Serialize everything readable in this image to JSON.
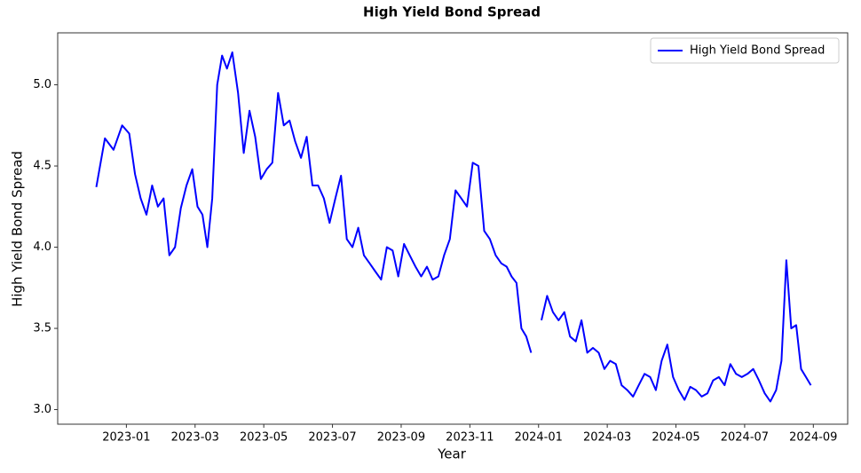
{
  "chart_data": {
    "type": "line",
    "title": "High Yield Bond Spread",
    "x_label": "Year",
    "y_label": "High Yield Bond Spread",
    "legend": "upper right",
    "xlim": [
      "2022-11",
      "2024-10"
    ],
    "ylim": [
      2.91,
      5.32
    ],
    "xticks": [
      "2023-01",
      "2023-03",
      "2023-05",
      "2023-07",
      "2023-09",
      "2023-11",
      "2024-01",
      "2024-03",
      "2024-05",
      "2024-07",
      "2024-09"
    ],
    "yticks": [
      {
        "value": 3,
        "label": "3.0"
      },
      {
        "value": 3.5,
        "label": "3.5"
      },
      {
        "value": 4,
        "label": "4.0"
      },
      {
        "value": 4.5,
        "label": "4.5"
      },
      {
        "value": 5,
        "label": "5.0"
      }
    ],
    "x": [
      "2022-12",
      "2022-12",
      "2022-12",
      "2022-12",
      "2023-01",
      "2023-01",
      "2023-01",
      "2023-01",
      "2023-01",
      "2023-01",
      "2023-02",
      "2023-02",
      "2023-02",
      "2023-02",
      "2023-02",
      "2023-02",
      "2023-03",
      "2023-03",
      "2023-03",
      "2023-03",
      "2023-03",
      "2023-03",
      "2023-03",
      "2023-04",
      "2023-04",
      "2023-04",
      "2023-04",
      "2023-04",
      "2023-04",
      "2023-05",
      "2023-05",
      "2023-05",
      "2023-05",
      "2023-05",
      "2023-05",
      "2023-06",
      "2023-06",
      "2023-06",
      "2023-06",
      "2023-06",
      "2023-06",
      "2023-07",
      "2023-07",
      "2023-07",
      "2023-07",
      "2023-07",
      "2023-07",
      "2023-08",
      "2023-08",
      "2023-08",
      "2023-08",
      "2023-08",
      "2023-08",
      "2023-09",
      "2023-09",
      "2023-09",
      "2023-09",
      "2023-09",
      "2023-09",
      "2023-10",
      "2023-10",
      "2023-10",
      "2023-10",
      "2023-10",
      "2023-10",
      "2023-11",
      "2023-11",
      "2023-11",
      "2023-11",
      "2023-11",
      "2023-11",
      "2023-12",
      "2023-12",
      "2023-12",
      "2023-12",
      "2023-12",
      "2023-12",
      "2023-12",
      "2024-01",
      "2024-01",
      "2024-01",
      "2024-01",
      "2024-01",
      "2024-01",
      "2024-02",
      "2024-02",
      "2024-02",
      "2024-02",
      "2024-02",
      "2024-02",
      "2024-03",
      "2024-03",
      "2024-03",
      "2024-03",
      "2024-03",
      "2024-03",
      "2024-04",
      "2024-04",
      "2024-04",
      "2024-04",
      "2024-04",
      "2024-04",
      "2024-05",
      "2024-05",
      "2024-05",
      "2024-05",
      "2024-05",
      "2024-05",
      "2024-06",
      "2024-06",
      "2024-06",
      "2024-06",
      "2024-06",
      "2024-06",
      "2024-07",
      "2024-07",
      "2024-07",
      "2024-07",
      "2024-07",
      "2024-07",
      "2024-08",
      "2024-08",
      "2024-08",
      "2024-08",
      "2024-08",
      "2024-08",
      "2024-08"
    ],
    "series": [
      {
        "name": "High Yield Bond Spread",
        "color": "#0000ff",
        "values": [
          4.37,
          4.67,
          4.6,
          4.75,
          4.7,
          4.45,
          4.3,
          4.2,
          4.38,
          4.25,
          4.3,
          3.95,
          4.0,
          4.24,
          4.38,
          4.48,
          4.25,
          4.2,
          4.0,
          4.3,
          5.0,
          5.18,
          5.1,
          5.2,
          4.95,
          4.58,
          4.84,
          4.68,
          4.42,
          4.48,
          4.52,
          4.95,
          4.75,
          4.78,
          4.65,
          4.55,
          4.68,
          4.38,
          4.38,
          4.3,
          4.15,
          4.3,
          4.44,
          4.05,
          4.0,
          4.12,
          3.95,
          3.9,
          3.85,
          3.8,
          4.0,
          3.98,
          3.82,
          4.02,
          3.95,
          3.88,
          3.82,
          3.88,
          3.8,
          3.82,
          3.95,
          4.05,
          4.35,
          4.3,
          4.25,
          4.52,
          4.5,
          4.1,
          4.05,
          3.95,
          3.9,
          3.88,
          3.82,
          3.78,
          3.5,
          3.45,
          3.35,
          null,
          3.55,
          3.7,
          3.6,
          3.55,
          3.6,
          3.45,
          3.42,
          3.55,
          3.35,
          3.38,
          3.35,
          3.25,
          3.3,
          3.28,
          3.15,
          3.12,
          3.08,
          3.15,
          3.22,
          3.2,
          3.12,
          3.3,
          3.4,
          3.2,
          3.12,
          3.06,
          3.14,
          3.12,
          3.08,
          3.1,
          3.18,
          3.2,
          3.15,
          3.28,
          3.22,
          3.2,
          3.22,
          3.25,
          3.18,
          3.1,
          3.05,
          3.12,
          3.3,
          3.92,
          3.5,
          3.52,
          3.25,
          3.2,
          3.15
        ]
      }
    ]
  }
}
